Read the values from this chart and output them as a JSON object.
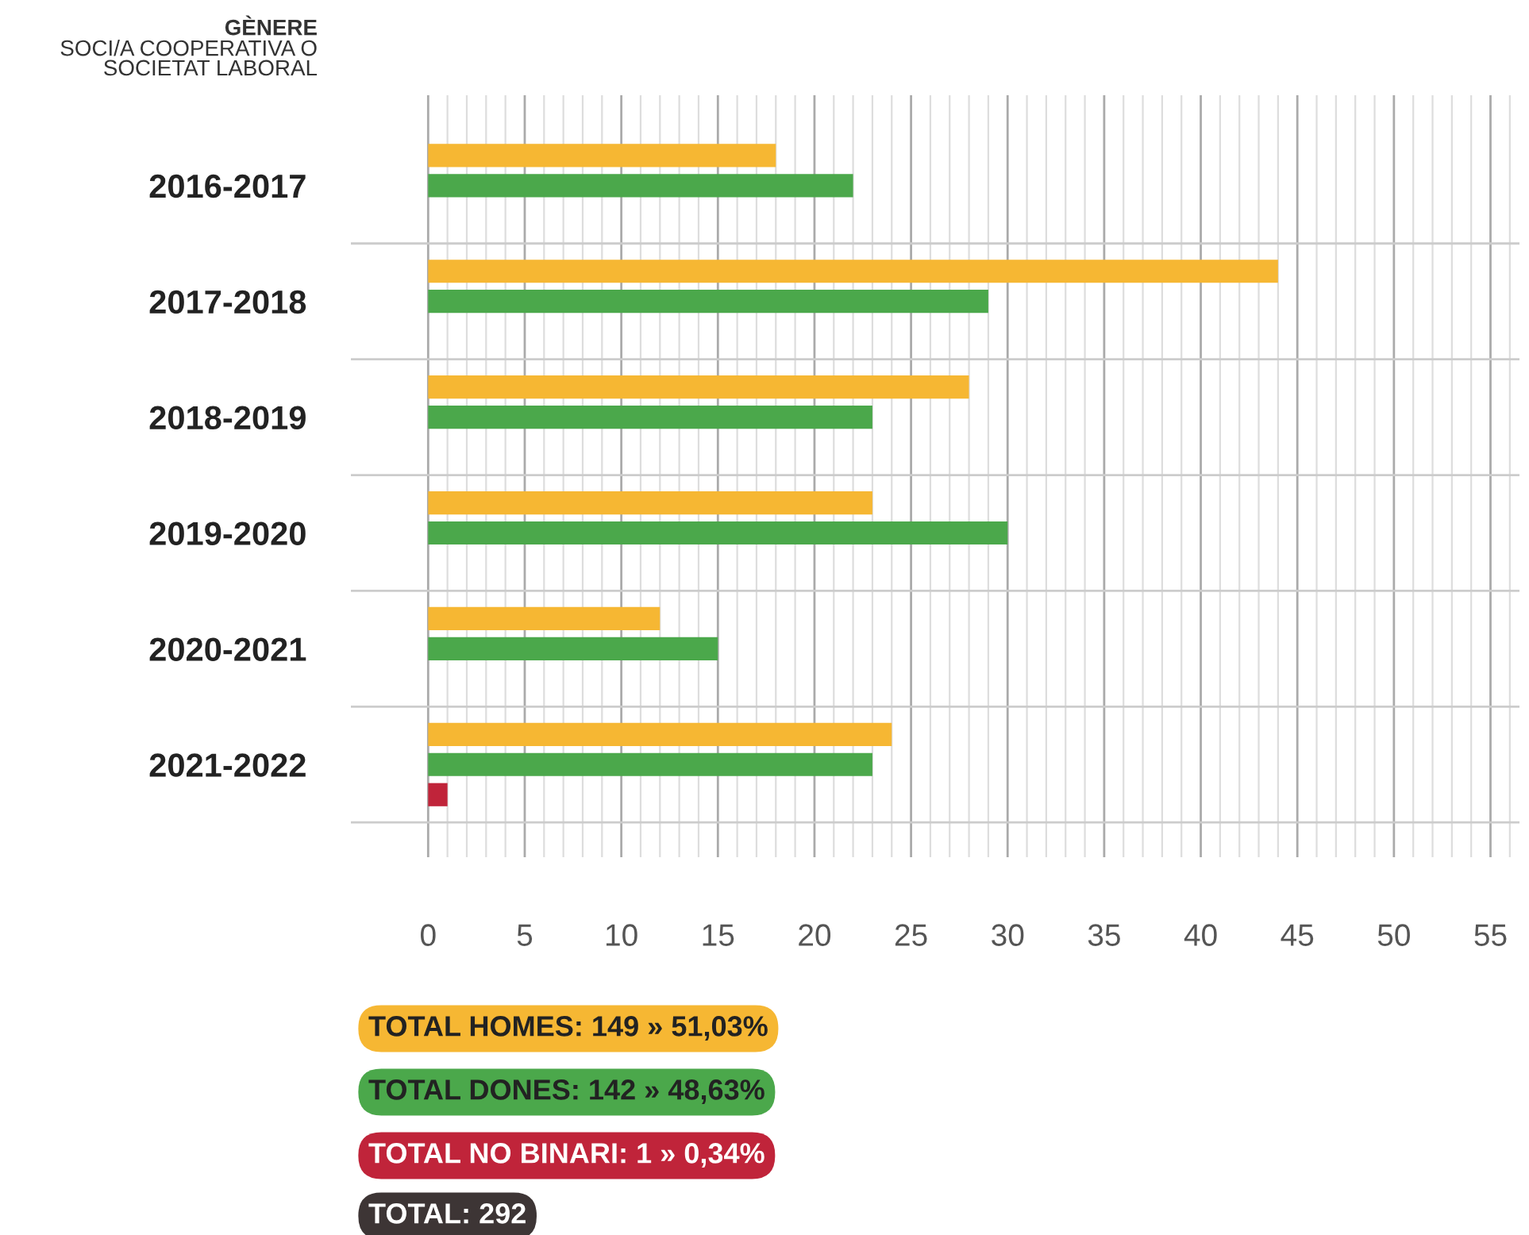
{
  "chart_data": {
    "type": "bar",
    "orientation": "horizontal",
    "title": "GÈNERE",
    "subtitle": "SOCI/A COOPERATIVA O SOCIETAT LABORAL",
    "categories": [
      "2016-2017",
      "2017-2018",
      "2018-2019",
      "2019-2020",
      "2020-2021",
      "2021-2022"
    ],
    "series": [
      {
        "name": "TOTAL HOMES: 149 » 51,03%",
        "color": "#f6b733",
        "values": [
          18,
          44,
          28,
          23,
          12,
          24
        ]
      },
      {
        "name": "TOTAL DONES: 142 » 48,63%",
        "color": "#4ba84b",
        "values": [
          22,
          29,
          23,
          30,
          15,
          23
        ]
      },
      {
        "name": "TOTAL NO BINARI: 1 » 0,34%",
        "color": "#c0243a",
        "values": [
          null,
          null,
          null,
          null,
          null,
          1
        ]
      }
    ],
    "annotations": [
      "TOTAL: 292"
    ],
    "xlim": [
      -4,
      56.5
    ],
    "xticks": [
      0,
      5,
      10,
      15,
      20,
      25,
      30,
      35,
      40,
      45,
      50,
      55
    ],
    "grid": true,
    "legend": "bottom"
  }
}
